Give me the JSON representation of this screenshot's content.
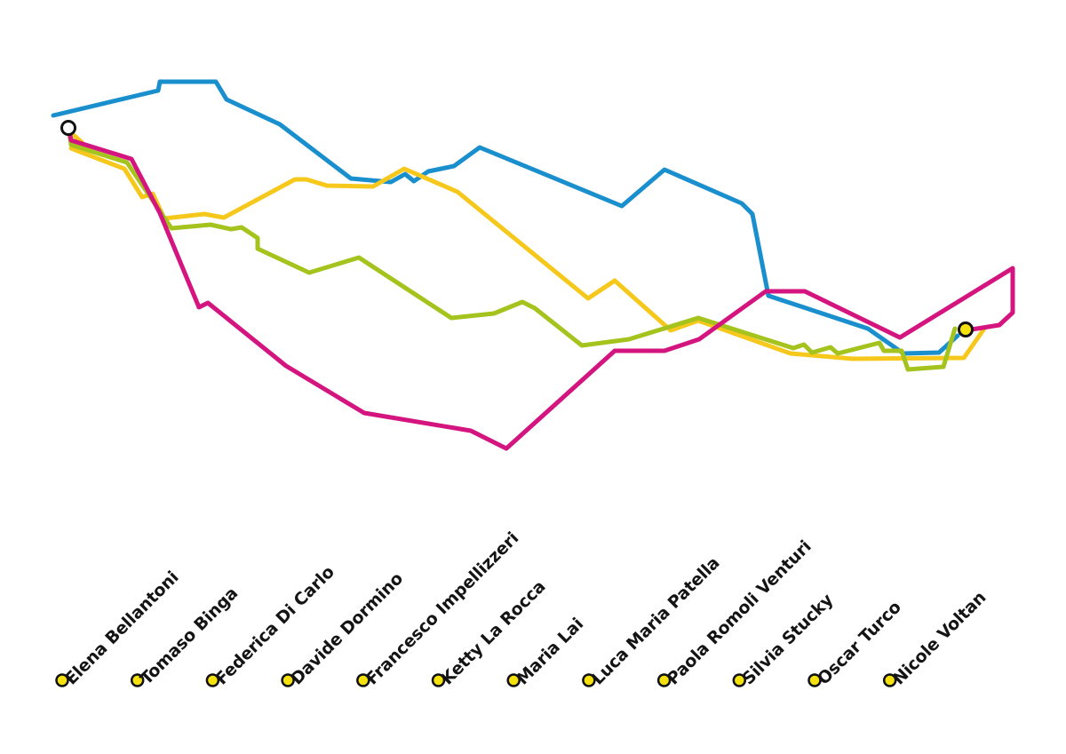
{
  "colors": {
    "route_blue": "#1a8fce",
    "route_yellow": "#f7c81c",
    "route_green": "#a4c31c",
    "route_magenta": "#d4147f",
    "marker_start_fill": "#ffffff",
    "marker_end_fill": "#f5e10d",
    "artist_dot_fill": "#f5e10d",
    "outline": "#111111"
  },
  "routes": [
    {
      "id": "blue-route",
      "color_key": "route_blue"
    },
    {
      "id": "yellow-route",
      "color_key": "route_yellow"
    },
    {
      "id": "green-route",
      "color_key": "route_green"
    },
    {
      "id": "magenta-route",
      "color_key": "route_magenta"
    }
  ],
  "artists": [
    "Elena Bellantoni",
    "Tomaso Binga",
    "Federica Di Carlo",
    "Davide Dormino",
    "Francesco Impellizzeri",
    "Ketty La Rocca",
    "Maria Lai",
    "Luca Maria Patella",
    "Paola Romoli Venturi",
    "Silvia Stucky",
    "Oscar Turco",
    "Nicole Voltan"
  ]
}
